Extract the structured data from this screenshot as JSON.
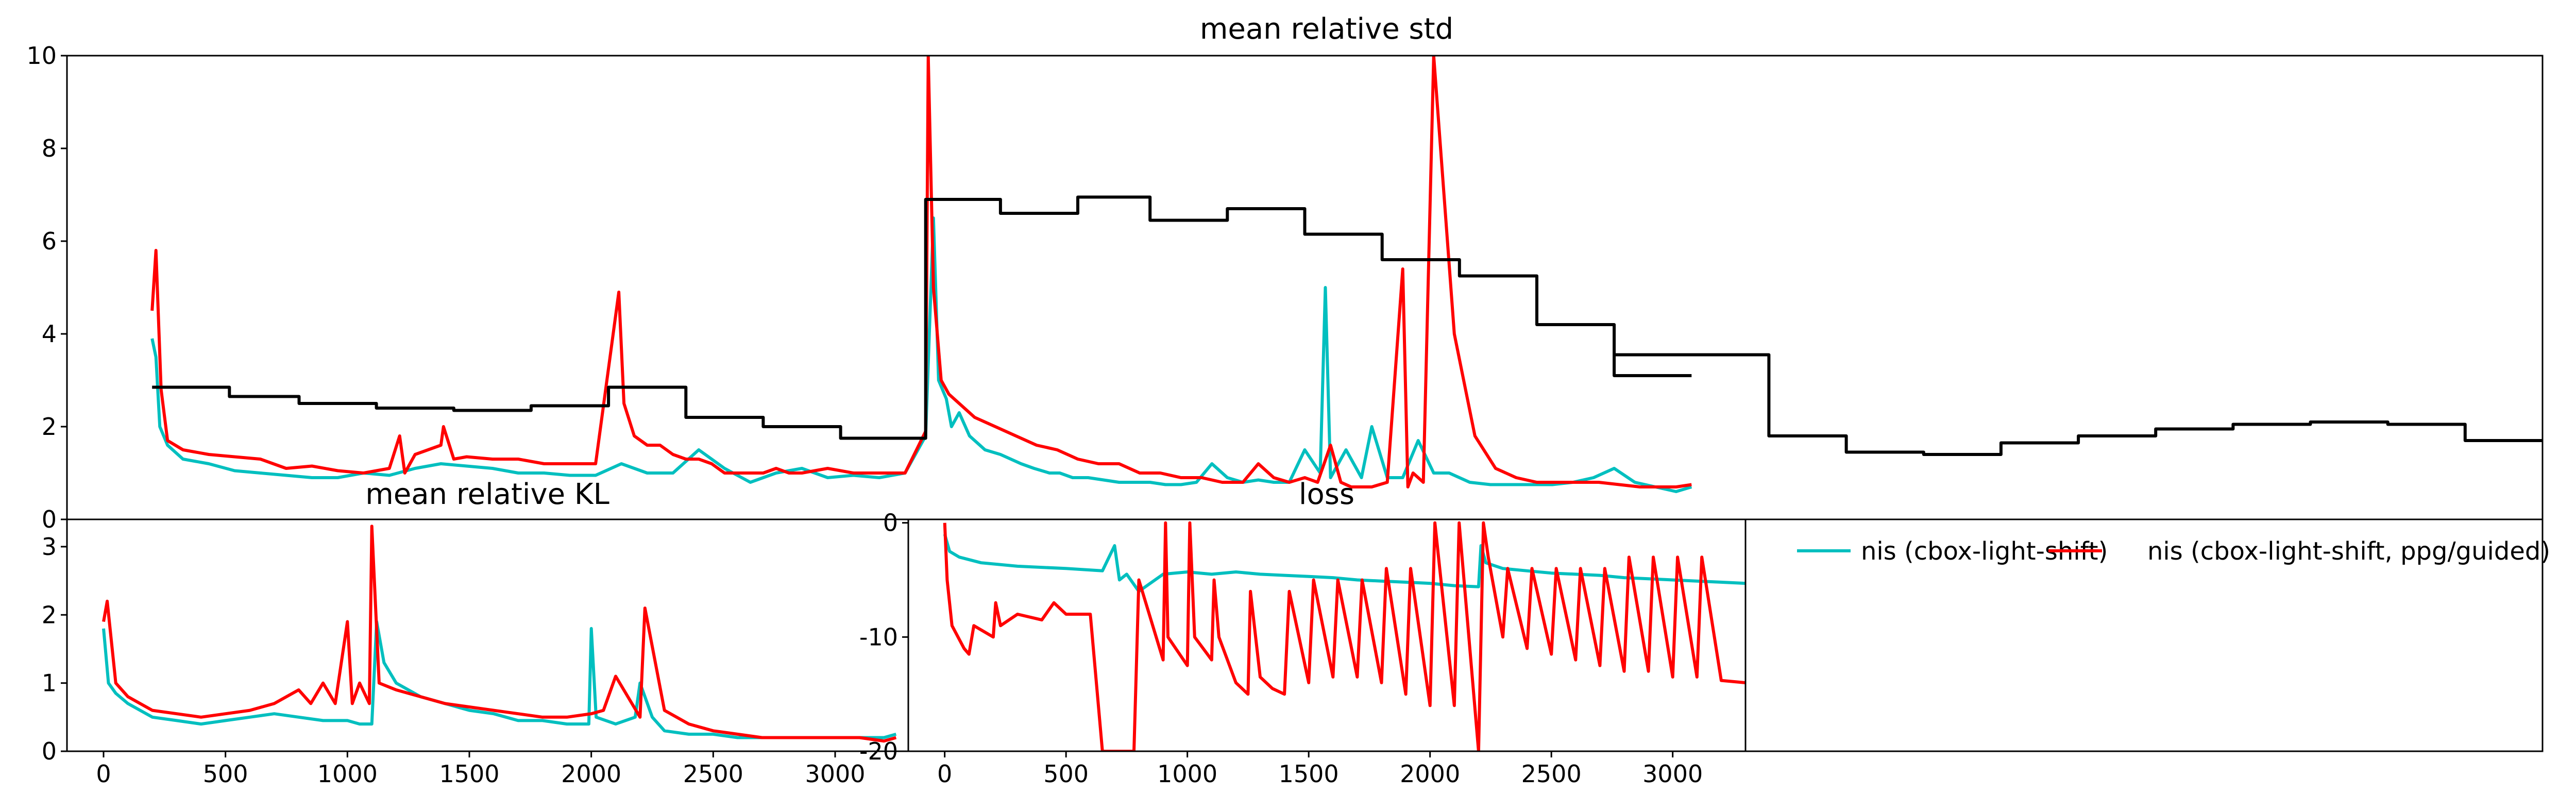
{
  "chart_data": [
    {
      "type": "line",
      "title": "mean relative std",
      "ylim": [
        0,
        10
      ],
      "yticks": [
        0,
        2,
        4,
        6,
        8,
        10
      ],
      "grid": false,
      "series": [
        {
          "color": "#00bfbf",
          "x": [
            330,
            345,
            360,
            390,
            450,
            550,
            650,
            750,
            850,
            950,
            1050,
            1150,
            1250,
            1350,
            1450,
            1550,
            1650,
            1750,
            1850,
            1950,
            2050,
            2150,
            2250,
            2350,
            2450,
            2550,
            2650,
            2750,
            2850,
            2950,
            3050,
            3150,
            3250,
            3330,
            3360,
            3380,
            3410,
            3430,
            3460,
            3500,
            3560,
            3620,
            3700,
            3750,
            3810,
            3850,
            3900,
            3960,
            4020,
            4080,
            4140,
            4200,
            4260,
            4320,
            4380,
            4440,
            4500,
            4560,
            4620,
            4680,
            4740,
            4800,
            4860,
            4880,
            4900,
            4960,
            5020,
            5060,
            5120,
            5180,
            5240,
            5300,
            5360,
            5440,
            5520,
            5600,
            5680,
            5760,
            5840,
            5920,
            6000,
            6080,
            6160,
            6240,
            6300
          ],
          "y": [
            3.9,
            3.5,
            2.0,
            1.6,
            1.3,
            1.2,
            1.05,
            1.0,
            0.95,
            0.9,
            0.9,
            1.0,
            0.95,
            1.1,
            1.2,
            1.15,
            1.1,
            1.0,
            1.0,
            0.95,
            0.95,
            1.2,
            1.0,
            1.0,
            1.5,
            1.1,
            0.8,
            1.0,
            1.1,
            0.9,
            0.95,
            0.9,
            1.0,
            1.8,
            6.5,
            3.0,
            2.6,
            2.0,
            2.3,
            1.8,
            1.5,
            1.4,
            1.2,
            1.1,
            1.0,
            1.0,
            0.9,
            0.9,
            0.85,
            0.8,
            0.8,
            0.8,
            0.75,
            0.75,
            0.8,
            1.2,
            0.9,
            0.8,
            0.85,
            0.8,
            0.8,
            1.5,
            1.0,
            5.0,
            0.9,
            1.5,
            0.9,
            2.0,
            0.9,
            0.9,
            1.7,
            1.0,
            1.0,
            0.8,
            0.75,
            0.75,
            0.75,
            0.75,
            0.8,
            0.9,
            1.1,
            0.8,
            0.7,
            0.6,
            0.7
          ]
        },
        {
          "color": "#ff0000",
          "x": [
            330,
            345,
            365,
            390,
            450,
            550,
            650,
            750,
            850,
            950,
            1050,
            1150,
            1250,
            1290,
            1310,
            1350,
            1450,
            1460,
            1500,
            1550,
            1650,
            1750,
            1850,
            1950,
            2050,
            2140,
            2160,
            2200,
            2250,
            2300,
            2350,
            2400,
            2450,
            2500,
            2550,
            2600,
            2650,
            2700,
            2750,
            2800,
            2850,
            2950,
            3050,
            3150,
            3250,
            3330,
            3340,
            3360,
            3390,
            3420,
            3460,
            3520,
            3600,
            3680,
            3760,
            3840,
            3920,
            4000,
            4080,
            4160,
            4240,
            4320,
            4400,
            4480,
            4560,
            4620,
            4680,
            4740,
            4800,
            4850,
            4900,
            4940,
            4980,
            5020,
            5060,
            5120,
            5180,
            5200,
            5220,
            5260,
            5300,
            5380,
            5460,
            5540,
            5620,
            5700,
            5780,
            5860,
            5940,
            6020,
            6100,
            6180,
            6240,
            6300
          ],
          "y": [
            4.5,
            5.8,
            2.8,
            1.7,
            1.5,
            1.4,
            1.35,
            1.3,
            1.1,
            1.15,
            1.05,
            1.0,
            1.1,
            1.8,
            1.0,
            1.4,
            1.6,
            2.0,
            1.3,
            1.35,
            1.3,
            1.3,
            1.2,
            1.2,
            1.2,
            4.9,
            2.5,
            1.8,
            1.6,
            1.6,
            1.4,
            1.3,
            1.3,
            1.2,
            1.0,
            1.0,
            1.0,
            1.0,
            1.1,
            1.0,
            1.0,
            1.1,
            1.0,
            1.0,
            1.0,
            1.9,
            10,
            5.0,
            3.0,
            2.7,
            2.5,
            2.2,
            2.0,
            1.8,
            1.6,
            1.5,
            1.3,
            1.2,
            1.2,
            1.0,
            1.0,
            0.9,
            0.9,
            0.8,
            0.8,
            1.2,
            0.9,
            0.8,
            0.9,
            0.8,
            1.6,
            0.8,
            0.7,
            0.7,
            0.7,
            0.8,
            5.4,
            0.7,
            1.0,
            0.8,
            10,
            4.0,
            1.8,
            1.1,
            0.9,
            0.8,
            0.8,
            0.8,
            0.8,
            0.75,
            0.7,
            0.7,
            0.7,
            0.75
          ]
        },
        {
          "color": "#000000",
          "x": [
            330,
            630,
            630,
            900,
            900,
            1200,
            1200,
            1500,
            1500,
            1800,
            1800,
            2100,
            2100,
            2400,
            2400,
            2700,
            2700,
            3000,
            3000,
            3330,
            3330,
            3620,
            3620,
            3920,
            3920,
            4200,
            4200,
            4500,
            4500,
            4800,
            4800,
            5100,
            5100,
            5400,
            5400,
            5700,
            5700,
            6000,
            6000,
            6300
          ],
          "y": [
            2.85,
            2.85,
            2.65,
            2.65,
            2.5,
            2.5,
            2.4,
            2.4,
            2.35,
            2.35,
            2.45,
            2.45,
            2.85,
            2.85,
            2.2,
            2.2,
            2.0,
            2.0,
            1.75,
            1.75,
            6.9,
            6.9,
            6.6,
            6.6,
            6.95,
            6.95,
            6.45,
            6.45,
            6.7,
            6.7,
            6.15,
            6.15,
            5.6,
            5.6,
            5.25,
            5.25,
            4.2,
            4.2,
            3.1,
            3.1
          ]
        }
      ],
      "black_tail": {
        "x": [
          6000,
          6300,
          6600,
          6600,
          6900,
          6900,
          7200,
          7200,
          7500,
          7500,
          7800,
          7800,
          8100,
          8100,
          8400,
          8400,
          8700,
          8700,
          9000,
          9000,
          9300,
          9300,
          9600
        ],
        "y": [
          3.55,
          3.55,
          3.55,
          1.8,
          1.8,
          1.45,
          1.45,
          1.4,
          1.4,
          1.65,
          1.65,
          1.8,
          1.8,
          1.95,
          1.95,
          2.05,
          2.05,
          2.1,
          2.1,
          2.05,
          2.05,
          1.7,
          1.7
        ]
      },
      "xlim": [
        0,
        9600
      ]
    },
    {
      "type": "line",
      "title": "mean relative KL",
      "xlim": [
        -150,
        3300
      ],
      "ylim": [
        0,
        3.4
      ],
      "xticks": [
        0,
        500,
        1000,
        1500,
        2000,
        2500,
        3000
      ],
      "yticks": [
        0,
        1,
        2,
        3
      ],
      "grid": false,
      "series": [
        {
          "color": "#00bfbf",
          "x": [
            0,
            20,
            50,
            100,
            200,
            300,
            400,
            500,
            600,
            700,
            800,
            900,
            1000,
            1050,
            1100,
            1120,
            1150,
            1200,
            1300,
            1400,
            1500,
            1600,
            1700,
            1800,
            1900,
            1990,
            2000,
            2020,
            2100,
            2180,
            2200,
            2250,
            2300,
            2400,
            2500,
            2600,
            2700,
            2800,
            2900,
            3000,
            3100,
            3200,
            3250
          ],
          "y": [
            1.8,
            1.0,
            0.85,
            0.7,
            0.5,
            0.45,
            0.4,
            0.45,
            0.5,
            0.55,
            0.5,
            0.45,
            0.45,
            0.4,
            0.4,
            1.9,
            1.3,
            1.0,
            0.8,
            0.7,
            0.6,
            0.55,
            0.45,
            0.45,
            0.4,
            0.4,
            1.8,
            0.5,
            0.4,
            0.5,
            1.0,
            0.5,
            0.3,
            0.25,
            0.25,
            0.2,
            0.2,
            0.2,
            0.2,
            0.2,
            0.2,
            0.2,
            0.25
          ]
        },
        {
          "color": "#ff0000",
          "x": [
            0,
            15,
            50,
            100,
            200,
            300,
            400,
            500,
            600,
            700,
            800,
            850,
            900,
            950,
            1000,
            1020,
            1050,
            1090,
            1100,
            1130,
            1200,
            1300,
            1400,
            1500,
            1600,
            1700,
            1800,
            1900,
            2000,
            2050,
            2100,
            2200,
            2220,
            2300,
            2400,
            2500,
            2600,
            2700,
            2800,
            2900,
            3000,
            3100,
            3200,
            3250
          ],
          "y": [
            1.9,
            2.2,
            1.0,
            0.8,
            0.6,
            0.55,
            0.5,
            0.55,
            0.6,
            0.7,
            0.9,
            0.7,
            1.0,
            0.7,
            1.9,
            0.7,
            1.0,
            0.7,
            3.3,
            1.0,
            0.9,
            0.8,
            0.7,
            0.65,
            0.6,
            0.55,
            0.5,
            0.5,
            0.55,
            0.6,
            1.1,
            0.5,
            2.1,
            0.6,
            0.4,
            0.3,
            0.25,
            0.2,
            0.2,
            0.2,
            0.2,
            0.2,
            0.15,
            0.2
          ]
        }
      ]
    },
    {
      "type": "line",
      "title": "loss",
      "xlim": [
        -150,
        3300
      ],
      "ylim": [
        -20,
        0.3
      ],
      "xticks": [
        0,
        500,
        1000,
        1500,
        2000,
        2500,
        3000
      ],
      "yticks": [
        0,
        -10,
        -20
      ],
      "grid": false,
      "series": [
        {
          "color": "#00bfbf",
          "x": [
            0,
            20,
            60,
            150,
            300,
            500,
            650,
            700,
            720,
            750,
            800,
            900,
            1000,
            1100,
            1200,
            1300,
            1400,
            1500,
            1600,
            1700,
            1800,
            1900,
            2000,
            2100,
            2200,
            2210,
            2230,
            2300,
            2400,
            2500,
            2600,
            2700,
            2800,
            2900,
            3000,
            3100,
            3200,
            3300
          ],
          "y": [
            -1,
            -2.5,
            -3,
            -3.5,
            -3.8,
            -4,
            -4.2,
            -2,
            -5,
            -4.5,
            -6,
            -4.5,
            -4.3,
            -4.5,
            -4.3,
            -4.5,
            -4.6,
            -4.7,
            -4.8,
            -5,
            -5.1,
            -5.2,
            -5.3,
            -5.5,
            -5.6,
            -2,
            -3.5,
            -4,
            -4.2,
            -4.4,
            -4.5,
            -4.6,
            -4.8,
            -4.9,
            -5,
            -5.1,
            -5.2,
            -5.3
          ]
        },
        {
          "color": "#ff0000",
          "x": [
            0,
            10,
            30,
            80,
            100,
            120,
            200,
            210,
            230,
            300,
            400,
            450,
            500,
            600,
            650,
            700,
            780,
            800,
            900,
            910,
            920,
            1000,
            1010,
            1030,
            1100,
            1110,
            1130,
            1200,
            1250,
            1260,
            1300,
            1350,
            1400,
            1420,
            1500,
            1520,
            1600,
            1620,
            1700,
            1720,
            1800,
            1820,
            1900,
            1920,
            2000,
            2020,
            2100,
            2120,
            2200,
            2220,
            2240,
            2300,
            2320,
            2400,
            2420,
            2500,
            2520,
            2600,
            2620,
            2700,
            2720,
            2800,
            2820,
            2900,
            2920,
            3000,
            3020,
            3100,
            3120,
            3200,
            3300
          ],
          "y": [
            0,
            -5,
            -9,
            -11,
            -11.5,
            -9,
            -10,
            -7,
            -9,
            -8,
            -8.5,
            -7,
            -8,
            -8,
            -20,
            -20,
            -20,
            -5,
            -12,
            0,
            -10,
            -12.5,
            0,
            -10,
            -12,
            -5,
            -10,
            -14,
            -15,
            -6,
            -13.5,
            -14.5,
            -15,
            -6,
            -14,
            -5,
            -13.5,
            -5,
            -13.5,
            -5,
            -14,
            -4,
            -15,
            -4,
            -16,
            0,
            -16,
            0,
            -20,
            0,
            -3,
            -10,
            -4,
            -11,
            -4,
            -11.5,
            -4,
            -12,
            -4,
            -12.5,
            -4,
            -13,
            -3,
            -13,
            -3,
            -13.5,
            -3,
            -13.5,
            -3,
            -13.8,
            -14
          ]
        }
      ]
    }
  ],
  "legend": {
    "placement": "upper-left of bottom-right panel",
    "entries": [
      {
        "label": "nis (cbox-light-shift)",
        "color": "#00bfbf"
      },
      {
        "label": "nis (cbox-light-shift, ppg/guided)",
        "color": "#ff0000"
      }
    ]
  }
}
